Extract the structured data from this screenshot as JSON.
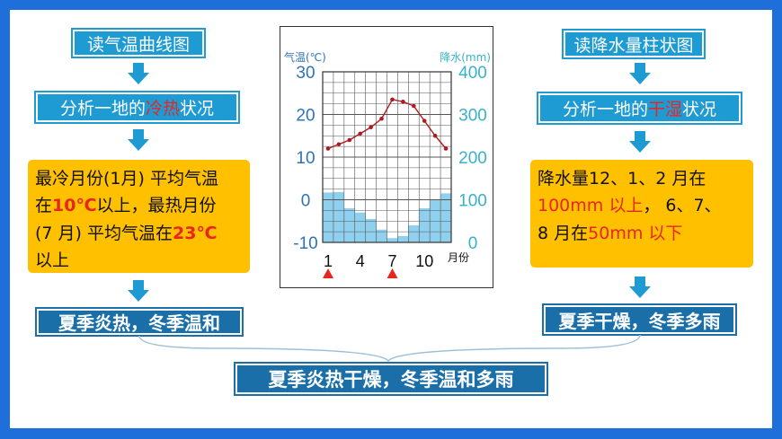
{
  "left": {
    "title": "读气温曲线图",
    "analysis": {
      "prefix": "分析一地的",
      "highlight": "冷热",
      "suffix": "状况"
    },
    "note": {
      "l1": "最冷月份(1月) 平均气温",
      "l2a": "在",
      "l2b": "10℃",
      "l2c": "以上，最热月份",
      "l3a": "(7 月) 平均气温在",
      "l3b": "23℃",
      "l4": "以上"
    },
    "result": "夏季炎热，冬季温和"
  },
  "right": {
    "title": "读降水量柱状图",
    "analysis": {
      "prefix": "分析一地的",
      "highlight": "干湿",
      "suffix": "状况"
    },
    "note": {
      "l1": "降水量12、1、2 月在",
      "l2a": "100mm 以上",
      "l2b": "， 6、7、",
      "l3a": "8 月在",
      "l3b": "50mm 以下"
    },
    "result": "夏季干燥，冬季多雨"
  },
  "conclusion": "夏季炎热干燥，冬季温和多雨",
  "colors": {
    "accent": "#1f9bd4",
    "dark": "#1b6fa8",
    "note": "#ffc000",
    "highlight": "#e8261e",
    "frame": "#1e6fd9"
  },
  "chart_data": {
    "type": "bar+line",
    "temp_axis_label": "气温(℃)",
    "precip_axis_label": "降水(mm)",
    "x_unit": "月份",
    "months": [
      1,
      2,
      3,
      4,
      5,
      6,
      7,
      8,
      9,
      10,
      11,
      12
    ],
    "x_tick_labels": [
      "1",
      "4",
      "7",
      "10"
    ],
    "temp_ticks": [
      "30",
      "20",
      "10",
      "0",
      "-10"
    ],
    "precip_ticks": [
      "400",
      "300",
      "200",
      "100",
      "0"
    ],
    "temp_range": [
      -10,
      30
    ],
    "precip_range": [
      0,
      400
    ],
    "temperature": [
      12,
      13,
      14,
      15.5,
      17,
      19,
      23.5,
      23,
      22,
      18.5,
      15,
      12
    ],
    "precipitation": [
      117,
      118,
      80,
      70,
      55,
      30,
      10,
      15,
      40,
      80,
      100,
      115
    ],
    "markers": [
      1,
      7
    ],
    "grid": true
  }
}
